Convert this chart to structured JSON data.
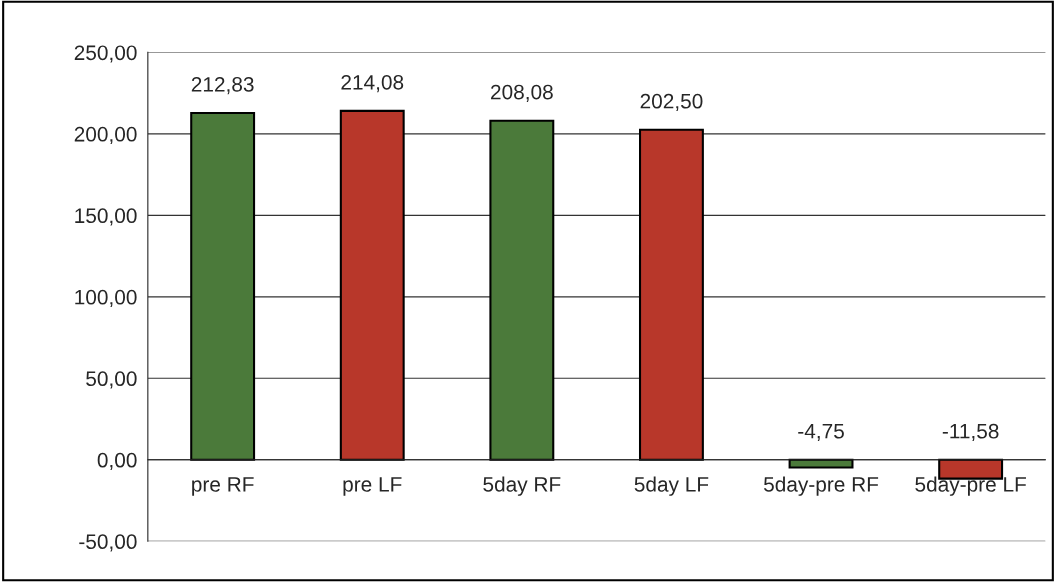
{
  "chart_data": {
    "type": "bar",
    "categories": [
      "pre RF",
      "pre LF",
      "5day RF",
      "5day LF",
      "5day-pre RF",
      "5day-pre LF"
    ],
    "values": [
      212.83,
      214.08,
      208.08,
      202.5,
      -4.75,
      -11.58
    ],
    "colors": [
      "#4b7a3a",
      "#b8372a",
      "#4b7a3a",
      "#b8372a",
      "#4b7a3a",
      "#b8372a"
    ],
    "value_labels": [
      "212,83",
      "214,08",
      "208,08",
      "202,50",
      "-4,75",
      "-11,58"
    ],
    "ylim": [
      -50,
      250
    ],
    "yticks": [
      {
        "value": -50,
        "label": "-50,00"
      },
      {
        "value": 0,
        "label": "0,00"
      },
      {
        "value": 50,
        "label": "50,00"
      },
      {
        "value": 100,
        "label": "100,00"
      },
      {
        "value": 150,
        "label": "150,00"
      },
      {
        "value": 200,
        "label": "200,00"
      },
      {
        "value": 250,
        "label": "250,00"
      }
    ],
    "grid": "y"
  }
}
